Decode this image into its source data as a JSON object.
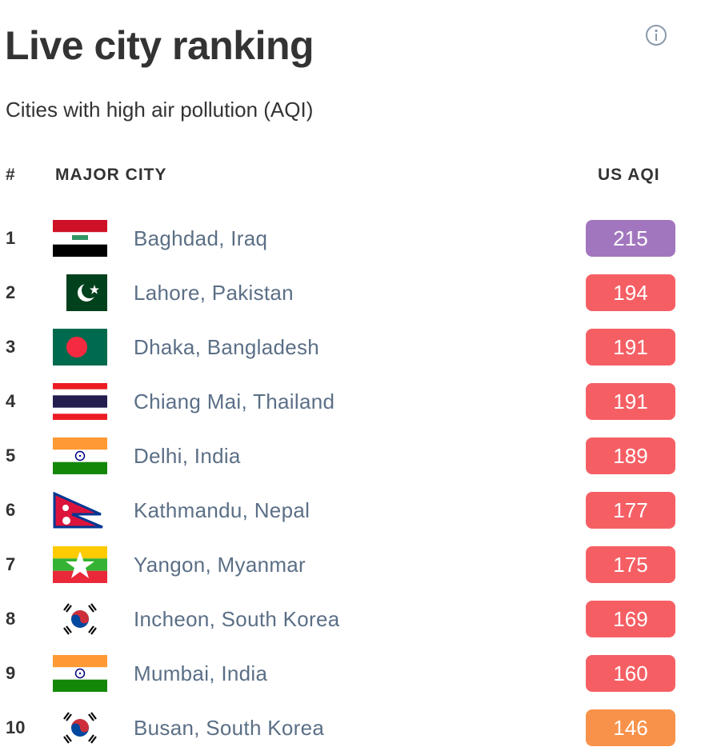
{
  "header": {
    "title": "Live city ranking",
    "subtitle": "Cities with high air pollution (AQI)"
  },
  "table": {
    "columns": [
      "#",
      "MAJOR CITY",
      "US AQI"
    ],
    "rows": [
      {
        "rank": 1,
        "city": "Baghdad, Iraq",
        "aqi": 215,
        "color": "#a276bf"
      },
      {
        "rank": 2,
        "city": "Lahore, Pakistan",
        "aqi": 194,
        "color": "#f55f64"
      },
      {
        "rank": 3,
        "city": "Dhaka, Bangladesh",
        "aqi": 191,
        "color": "#f55f64"
      },
      {
        "rank": 4,
        "city": "Chiang Mai, Thailand",
        "aqi": 191,
        "color": "#f55f64"
      },
      {
        "rank": 5,
        "city": "Delhi, India",
        "aqi": 189,
        "color": "#f55f64"
      },
      {
        "rank": 6,
        "city": "Kathmandu, Nepal",
        "aqi": 177,
        "color": "#f55f64"
      },
      {
        "rank": 7,
        "city": "Yangon, Myanmar",
        "aqi": 175,
        "color": "#f55f64"
      },
      {
        "rank": 8,
        "city": "Incheon, South Korea",
        "aqi": 169,
        "color": "#f55f64"
      },
      {
        "rank": 9,
        "city": "Mumbai, India",
        "aqi": 160,
        "color": "#f55f64"
      },
      {
        "rank": 10,
        "city": "Busan, South Korea",
        "aqi": 146,
        "color": "#f8924a"
      }
    ]
  }
}
